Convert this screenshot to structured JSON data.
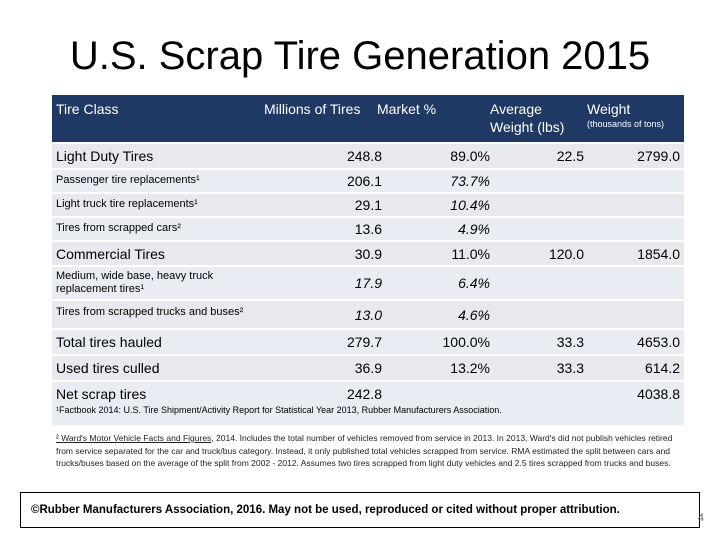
{
  "title": "U.S. Scrap Tire Generation 2015",
  "header": {
    "tire_class": "Tire Class",
    "millions": "Millions of Tires",
    "market": "Market %",
    "avg_weight_1": "Average",
    "avg_weight_2": "Weight (lbs)",
    "weight": "Weight",
    "weight_sub": "(thousands of tons)"
  },
  "rows": [
    {
      "label": "Light Duty Tires",
      "millions": "248.8",
      "market": "89.0%",
      "avg": "22.5",
      "weight": "2799.0"
    },
    {
      "label": "Passenger tire replacements¹",
      "millions": "206.1",
      "market": "73.7%",
      "avg": "",
      "weight": ""
    },
    {
      "label": "Light truck tire replacements¹",
      "millions": "29.1",
      "market": "10.4%",
      "avg": "",
      "weight": ""
    },
    {
      "label": "Tires from scrapped cars²",
      "millions": "13.6",
      "market": "4.9%",
      "avg": "",
      "weight": ""
    },
    {
      "label": "Commercial Tires",
      "millions": "30.9",
      "market": "11.0%",
      "avg": "120.0",
      "weight": "1854.0"
    },
    {
      "label": "Medium, wide base, heavy truck",
      "label2": "replacement tires¹",
      "millions": "17.9",
      "market": "6.4%",
      "avg": "",
      "weight": ""
    },
    {
      "label": "Tires from scrapped trucks and buses²",
      "millions": "13.0",
      "market": "4.6%",
      "avg": "",
      "weight": ""
    },
    {
      "label": "Total tires hauled",
      "millions": "279.7",
      "market": "100.0%",
      "avg": "33.3",
      "weight": "4653.0"
    },
    {
      "label": "Used tires culled",
      "millions": "36.9",
      "market": "13.2%",
      "avg": "33.3",
      "weight": "614.2"
    },
    {
      "label": "Net scrap tires",
      "millions": "242.8",
      "market": "",
      "avg": "",
      "weight": "4038.8"
    }
  ],
  "footnote1": "¹Factbook 2014: U.S. Tire Shipment/Activity Report for Statistical Year 2013, Rubber Manufacturers Association.",
  "footnote2_source": "² Ward's Motor Vehicle Facts and Figures",
  "footnote2_text": ", 2014. Includes the total number of vehicles removed from service in 2013. In 2013, Ward's did not publish vehicles retired from service separated for the car and truck/bus category. Instead, it only published total vehicles scrapped from service. RMA estimated the split between cars and trucks/buses based on the average of the split from 2002 - 2012. Assumes two tires scrapped from light duty vehicles and 2.5 tires scrapped from trucks and buses.",
  "copyright": "©Rubber Manufacturers Association, 2016. May not be used, reproduced or cited without proper attribution.",
  "page_number": "4"
}
